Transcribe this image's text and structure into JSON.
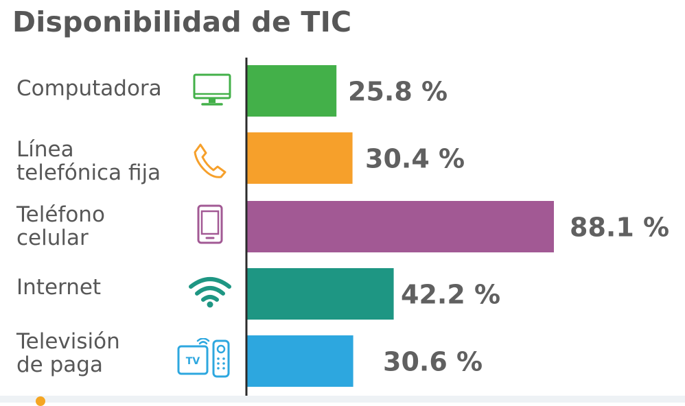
{
  "chart_data": {
    "type": "bar",
    "orientation": "horizontal",
    "title": "Disponibilidad de TIC",
    "categories": [
      "Computadora",
      "Línea telefónica fija",
      "Teléfono celular",
      "Internet",
      "Televisión de paga"
    ],
    "category_lines": [
      [
        "Computadora"
      ],
      [
        "Línea",
        "telefónica fija"
      ],
      [
        "Teléfono",
        "celular"
      ],
      [
        "Internet"
      ],
      [
        "Televisión",
        "de paga"
      ]
    ],
    "values": [
      25.8,
      30.4,
      88.1,
      42.2,
      30.6
    ],
    "value_labels": [
      "25.8 %",
      "30.4 %",
      "88.1 %",
      "42.2 %",
      "30.6 %"
    ],
    "unit": "%",
    "colors": [
      "#43b049",
      "#f6a02b",
      "#a25994",
      "#1e9683",
      "#2da7df"
    ],
    "icons": [
      "monitor-icon",
      "phone-icon",
      "smartphone-icon",
      "wifi-icon",
      "tv-remote-icon"
    ],
    "xlim": [
      0,
      100
    ],
    "grid": false,
    "legend": "none"
  }
}
